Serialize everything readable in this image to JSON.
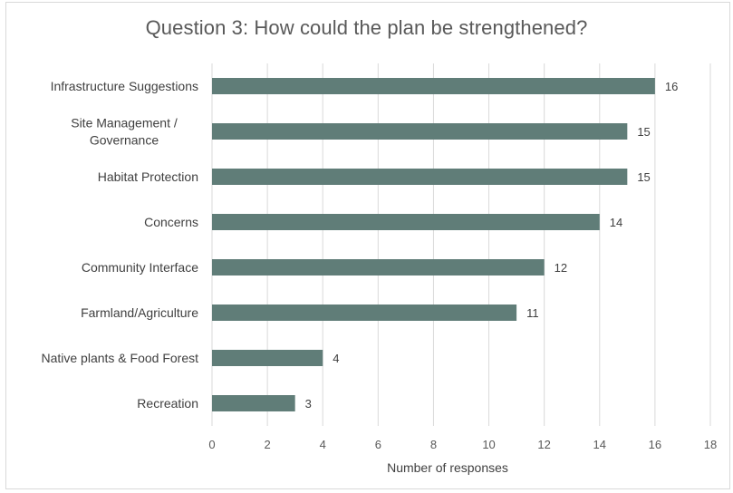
{
  "chart_data": {
    "type": "bar",
    "orientation": "horizontal",
    "title": "Question 3: How could the plan be strengthened?",
    "xlabel": "Number of responses",
    "ylabel": "",
    "categories": [
      [
        "Infrastructure Suggestions"
      ],
      [
        "Site Management /",
        "Governance"
      ],
      [
        "Habitat Protection"
      ],
      [
        "Concerns"
      ],
      [
        "Community Interface"
      ],
      [
        "Farmland/Agriculture"
      ],
      [
        "Native plants & Food Forest"
      ],
      [
        "Recreation"
      ]
    ],
    "values": [
      16,
      15,
      15,
      14,
      12,
      11,
      4,
      3
    ],
    "xlim": [
      0,
      18
    ],
    "xticks": [
      0,
      2,
      4,
      6,
      8,
      10,
      12,
      14,
      16,
      18
    ],
    "grid": "vertical",
    "legend": "none",
    "data_labels": true,
    "bar_color": "#607d78",
    "grid_color": "#d9d9d9"
  }
}
